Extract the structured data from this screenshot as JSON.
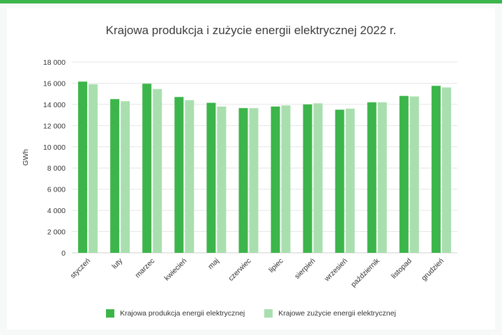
{
  "chart_data": {
    "type": "bar",
    "title": "Krajowa produkcja i zużycie energii elektrycznej 2022 r.",
    "ylabel": "GWh",
    "ylim": [
      0,
      18000
    ],
    "yticks": [
      0,
      2000,
      4000,
      6000,
      8000,
      10000,
      12000,
      14000,
      16000,
      18000
    ],
    "ytick_labels": [
      "0",
      "2 000",
      "4 000",
      "6 000",
      "8 000",
      "10 000",
      "12 000",
      "14 000",
      "16 000",
      "18 000"
    ],
    "grid": true,
    "legend_position": "bottom",
    "categories": [
      "styczeń",
      "luty",
      "marzec",
      "kwiecień",
      "maj",
      "czerwiec",
      "lipiec",
      "sierpień",
      "wrzesień",
      "październik",
      "listopad",
      "grudzień"
    ],
    "series": [
      {
        "name": "Krajowa produkcja energii elektrycznej",
        "color": "#3cb54a",
        "values": [
          16150,
          14500,
          15950,
          14700,
          14150,
          13650,
          13800,
          14000,
          13500,
          14200,
          14800,
          15750
        ]
      },
      {
        "name": "Krajowe zużycie energii elektrycznej",
        "color": "#a9dfae",
        "values": [
          15900,
          14300,
          15450,
          14400,
          13800,
          13650,
          13900,
          14100,
          13600,
          14200,
          14750,
          15600
        ]
      }
    ]
  }
}
